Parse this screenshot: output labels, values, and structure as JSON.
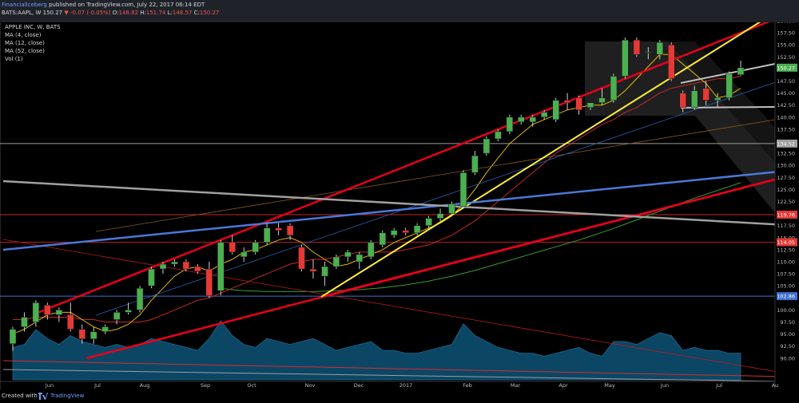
{
  "header": {
    "author": "FinancialIceberg",
    "published_text": "published on TradingView.com, July 22, 2017 06:14 EDT",
    "symbol": "BATS:AAPL, W",
    "last": "150.27",
    "change": "-0.07 (-0.05%)",
    "ohlc_o_label": "O:",
    "ohlc_o": "148.82",
    "ohlc_h_label": "H:",
    "ohlc_h": "151.74",
    "ohlc_l_label": "L:",
    "ohlc_l": "148.57",
    "ohlc_c_label": "C:",
    "ohlc_c": "150.27"
  },
  "legend": {
    "title": "APPLE INC, W, BATS",
    "items": [
      "MA (4, close)",
      "MA (12, close)",
      "MA (52, close)",
      "Vol (1)"
    ]
  },
  "footer": {
    "created_with": "Created with",
    "brand": "TradingView"
  },
  "colors": {
    "up": "#4caf50",
    "down": "#e53935",
    "red_line": "#e8001c",
    "yellow_line": "#ffeb3b",
    "blue_line": "#4a78d8",
    "gray_line": "#9e9e9e",
    "volume": "#0d4a6b",
    "volume_edge": "#1e6d94"
  },
  "chart_data": {
    "type": "candlestick",
    "interval": "W",
    "y_axis": {
      "range": [
        87.5,
        162.5
      ],
      "ticks": [
        "160.00",
        "157.50",
        "155.00",
        "152.50",
        "147.50",
        "145.00",
        "142.50",
        "140.00",
        "137.50",
        "135.00",
        "132.50",
        "130.00",
        "127.50",
        "125.00",
        "122.50",
        "117.50",
        "115.00",
        "112.50",
        "110.00",
        "107.50",
        "105.00",
        "100.00",
        "97.50",
        "95.00",
        "92.50",
        "90.00"
      ],
      "price_labels": [
        {
          "text": "150.27",
          "value": 150.27,
          "color": "#4caf50"
        },
        {
          "text": "134.52",
          "value": 134.52,
          "color": "#9e9e9e"
        },
        {
          "text": "119.76",
          "value": 119.76,
          "color": "#e53935"
        },
        {
          "text": "114.05",
          "value": 114.05,
          "color": "#e53935"
        },
        {
          "text": "102.86",
          "value": 102.86,
          "color": "#3f6fd0"
        }
      ]
    },
    "x_axis": {
      "labels": [
        "Jun",
        "Jul",
        "Aug",
        "Sep",
        "Oct",
        "Nov",
        "Dec",
        "2017",
        "Feb",
        "Mar",
        "Apr",
        "May",
        "Jun",
        "Jul",
        "Au"
      ]
    },
    "candles": [
      {
        "o": 93.0,
        "h": 96.5,
        "l": 91.5,
        "c": 96.0
      },
      {
        "o": 96.5,
        "h": 99.5,
        "l": 95.5,
        "c": 98.5
      },
      {
        "o": 97.5,
        "h": 102.0,
        "l": 96.5,
        "c": 101.5
      },
      {
        "o": 101.0,
        "h": 101.5,
        "l": 98.0,
        "c": 99.0
      },
      {
        "o": 99.0,
        "h": 100.5,
        "l": 97.5,
        "c": 100.0
      },
      {
        "o": 99.0,
        "h": 101.5,
        "l": 95.5,
        "c": 96.0
      },
      {
        "o": 96.0,
        "h": 97.0,
        "l": 93.0,
        "c": 94.0
      },
      {
        "o": 94.0,
        "h": 96.5,
        "l": 93.0,
        "c": 95.5
      },
      {
        "o": 95.5,
        "h": 97.0,
        "l": 95.0,
        "c": 96.5
      },
      {
        "o": 98.0,
        "h": 100.0,
        "l": 97.0,
        "c": 99.5
      },
      {
        "o": 99.5,
        "h": 101.5,
        "l": 99.0,
        "c": 100.0
      },
      {
        "o": 100.0,
        "h": 105.0,
        "l": 99.5,
        "c": 104.5
      },
      {
        "o": 105.0,
        "h": 109.0,
        "l": 104.5,
        "c": 108.5
      },
      {
        "o": 108.5,
        "h": 110.0,
        "l": 107.5,
        "c": 109.5
      },
      {
        "o": 109.5,
        "h": 110.5,
        "l": 109.0,
        "c": 110.0
      },
      {
        "o": 110.0,
        "h": 110.5,
        "l": 108.0,
        "c": 108.5
      },
      {
        "o": 109.0,
        "h": 109.5,
        "l": 107.5,
        "c": 108.0
      },
      {
        "o": 108.5,
        "h": 110.0,
        "l": 102.5,
        "c": 103.0
      },
      {
        "o": 104.0,
        "h": 114.5,
        "l": 103.0,
        "c": 114.0
      },
      {
        "o": 114.0,
        "h": 115.5,
        "l": 111.5,
        "c": 112.0
      },
      {
        "o": 111.0,
        "h": 113.0,
        "l": 110.0,
        "c": 112.0
      },
      {
        "o": 112.0,
        "h": 114.5,
        "l": 111.5,
        "c": 114.0
      },
      {
        "o": 114.0,
        "h": 118.0,
        "l": 113.5,
        "c": 117.0
      },
      {
        "o": 117.0,
        "h": 118.0,
        "l": 115.5,
        "c": 116.5
      },
      {
        "o": 117.5,
        "h": 118.0,
        "l": 114.5,
        "c": 115.5
      },
      {
        "o": 113.0,
        "h": 113.5,
        "l": 108.0,
        "c": 108.5
      },
      {
        "o": 108.5,
        "h": 110.5,
        "l": 106.5,
        "c": 108.0
      },
      {
        "o": 107.0,
        "h": 110.0,
        "l": 105.0,
        "c": 109.0
      },
      {
        "o": 109.0,
        "h": 111.5,
        "l": 108.5,
        "c": 111.0
      },
      {
        "o": 111.0,
        "h": 112.5,
        "l": 110.0,
        "c": 112.0
      },
      {
        "o": 110.0,
        "h": 112.0,
        "l": 108.5,
        "c": 111.5
      },
      {
        "o": 111.0,
        "h": 114.5,
        "l": 110.5,
        "c": 114.0
      },
      {
        "o": 113.5,
        "h": 116.5,
        "l": 113.0,
        "c": 116.0
      },
      {
        "o": 115.5,
        "h": 117.0,
        "l": 115.0,
        "c": 116.5
      },
      {
        "o": 116.5,
        "h": 117.0,
        "l": 115.5,
        "c": 116.0
      },
      {
        "o": 116.0,
        "h": 118.0,
        "l": 115.5,
        "c": 117.5
      },
      {
        "o": 117.5,
        "h": 119.5,
        "l": 117.0,
        "c": 119.0
      },
      {
        "o": 119.0,
        "h": 121.0,
        "l": 118.5,
        "c": 120.0
      },
      {
        "o": 120.0,
        "h": 122.5,
        "l": 119.5,
        "c": 122.0
      },
      {
        "o": 121.5,
        "h": 129.0,
        "l": 121.0,
        "c": 128.5
      },
      {
        "o": 128.5,
        "h": 133.0,
        "l": 128.0,
        "c": 132.0
      },
      {
        "o": 132.5,
        "h": 136.0,
        "l": 132.0,
        "c": 135.5
      },
      {
        "o": 135.5,
        "h": 137.5,
        "l": 135.0,
        "c": 137.0
      },
      {
        "o": 137.0,
        "h": 140.5,
        "l": 136.5,
        "c": 140.0
      },
      {
        "o": 139.0,
        "h": 140.5,
        "l": 138.5,
        "c": 140.0
      },
      {
        "o": 139.0,
        "h": 140.5,
        "l": 138.0,
        "c": 140.0
      },
      {
        "o": 140.0,
        "h": 141.5,
        "l": 139.5,
        "c": 141.0
      },
      {
        "o": 139.5,
        "h": 144.0,
        "l": 139.0,
        "c": 143.5
      },
      {
        "o": 143.5,
        "h": 145.0,
        "l": 141.5,
        "c": 143.0
      },
      {
        "o": 144.0,
        "h": 144.5,
        "l": 140.5,
        "c": 141.5
      },
      {
        "o": 142.0,
        "h": 143.0,
        "l": 141.5,
        "c": 143.0
      },
      {
        "o": 143.0,
        "h": 146.0,
        "l": 142.5,
        "c": 144.0
      },
      {
        "o": 143.5,
        "h": 149.0,
        "l": 143.0,
        "c": 148.5
      },
      {
        "o": 148.5,
        "h": 156.5,
        "l": 148.0,
        "c": 156.0
      },
      {
        "o": 156.0,
        "h": 156.5,
        "l": 152.5,
        "c": 153.0
      },
      {
        "o": 153.5,
        "h": 154.5,
        "l": 152.0,
        "c": 153.5
      },
      {
        "o": 153.0,
        "h": 156.0,
        "l": 152.0,
        "c": 155.5
      },
      {
        "o": 155.0,
        "h": 155.5,
        "l": 147.5,
        "c": 148.0
      },
      {
        "o": 145.0,
        "h": 145.5,
        "l": 141.0,
        "c": 142.0
      },
      {
        "o": 142.0,
        "h": 146.5,
        "l": 141.5,
        "c": 145.5
      },
      {
        "o": 146.0,
        "h": 147.5,
        "l": 142.5,
        "c": 143.5
      },
      {
        "o": 143.5,
        "h": 145.0,
        "l": 142.0,
        "c": 144.0
      },
      {
        "o": 144.0,
        "h": 149.5,
        "l": 143.5,
        "c": 149.0
      },
      {
        "o": 148.82,
        "h": 151.74,
        "l": 148.57,
        "c": 150.27
      }
    ],
    "ma4": [
      95,
      96,
      97.5,
      99,
      99.5,
      99.5,
      98,
      96.5,
      95.5,
      96,
      97,
      99,
      102,
      104.5,
      107,
      108.5,
      109,
      108,
      109.5,
      110.5,
      112,
      112.5,
      113.5,
      114.5,
      115,
      114,
      112,
      110.5,
      109,
      109.5,
      110.5,
      111.5,
      112.5,
      114,
      115,
      116,
      117,
      118,
      119.5,
      122,
      125,
      128.5,
      131.5,
      134.5,
      136.5,
      138.5,
      139.5,
      140.5,
      141.5,
      142,
      142.5,
      142.5,
      143.5,
      145.5,
      148,
      150.5,
      153,
      153,
      151,
      149,
      147,
      144,
      144.5,
      146
    ],
    "ma12": [
      98,
      98,
      98.5,
      98.5,
      98.5,
      98.5,
      98,
      98,
      97.5,
      97.5,
      97.5,
      97.5,
      98,
      99,
      100,
      101,
      102,
      102.5,
      103.5,
      104.5,
      105.5,
      106.5,
      107.5,
      108.5,
      109.5,
      110,
      110.5,
      110.5,
      111,
      111.5,
      112,
      112,
      112,
      112,
      112.5,
      113,
      113.5,
      114.5,
      115.5,
      117,
      118.5,
      120.5,
      122.5,
      124.5,
      126.5,
      128.5,
      130.5,
      132.5,
      134,
      135.5,
      137,
      138.5,
      139.5,
      141,
      142,
      143.5,
      145,
      146,
      146.5,
      147,
      147.5,
      148,
      148,
      148.5
    ],
    "ma52": [
      null,
      null,
      null,
      null,
      null,
      null,
      null,
      null,
      null,
      null,
      null,
      null,
      null,
      null,
      null,
      null,
      null,
      null,
      104.5,
      104.2,
      104,
      103.9,
      103.8,
      103.8,
      103.8,
      103.8,
      103.8,
      103.9,
      104,
      104.1,
      104.2,
      104.4,
      104.6,
      104.9,
      105.2,
      105.6,
      106,
      106.5,
      107,
      107.6,
      108.2,
      108.9,
      109.6,
      110.3,
      111,
      111.7,
      112.4,
      113.1,
      113.8,
      114.5,
      115.3,
      116.1,
      116.9,
      117.8,
      118.7,
      119.6,
      120.5,
      121.4,
      122.3,
      123.2,
      124,
      124.8,
      125.6,
      126.4
    ],
    "volume": [
      0.55,
      0.6,
      0.85,
      0.7,
      0.6,
      0.75,
      0.65,
      0.6,
      0.55,
      0.6,
      0.55,
      0.6,
      0.7,
      0.65,
      0.6,
      0.55,
      0.5,
      0.7,
      1.0,
      0.75,
      0.6,
      0.55,
      0.7,
      0.65,
      0.6,
      0.65,
      0.7,
      0.6,
      0.5,
      0.55,
      0.6,
      0.65,
      0.5,
      0.5,
      0.45,
      0.45,
      0.5,
      0.55,
      0.6,
      0.95,
      0.75,
      0.65,
      0.55,
      0.5,
      0.45,
      0.45,
      0.4,
      0.45,
      0.5,
      0.55,
      0.45,
      0.4,
      0.65,
      0.65,
      0.6,
      0.7,
      0.8,
      0.75,
      0.5,
      0.55,
      0.5,
      0.5,
      0.45,
      0.45
    ],
    "trend_lines": [
      {
        "name": "red-upper-channel",
        "color": "#e8001c",
        "width": 2.5,
        "points": [
          [
            47,
            392
          ],
          [
            985,
            18
          ]
        ]
      },
      {
        "name": "red-lower-channel",
        "color": "#e8001c",
        "width": 2.5,
        "points": [
          [
            108,
            449
          ],
          [
            985,
            221
          ]
        ]
      },
      {
        "name": "red-mid-channel",
        "color": "#e8001c",
        "width": 2.5,
        "points": [
          [
            402,
            372
          ],
          [
            985,
            221
          ]
        ]
      },
      {
        "name": "yellow-trendline",
        "color": "#ffeb3b",
        "width": 2,
        "points": [
          [
            402,
            372
          ],
          [
            960,
            22
          ]
        ]
      },
      {
        "name": "blue-trendline",
        "color": "#4a78d8",
        "width": 2.5,
        "points": [
          [
            4,
            313
          ],
          [
            985,
            214
          ]
        ]
      },
      {
        "name": "gray-trendline",
        "color": "#a0a0a0",
        "width": 2.5,
        "points": [
          [
            4,
            227
          ],
          [
            985,
            282
          ]
        ]
      }
    ]
  }
}
